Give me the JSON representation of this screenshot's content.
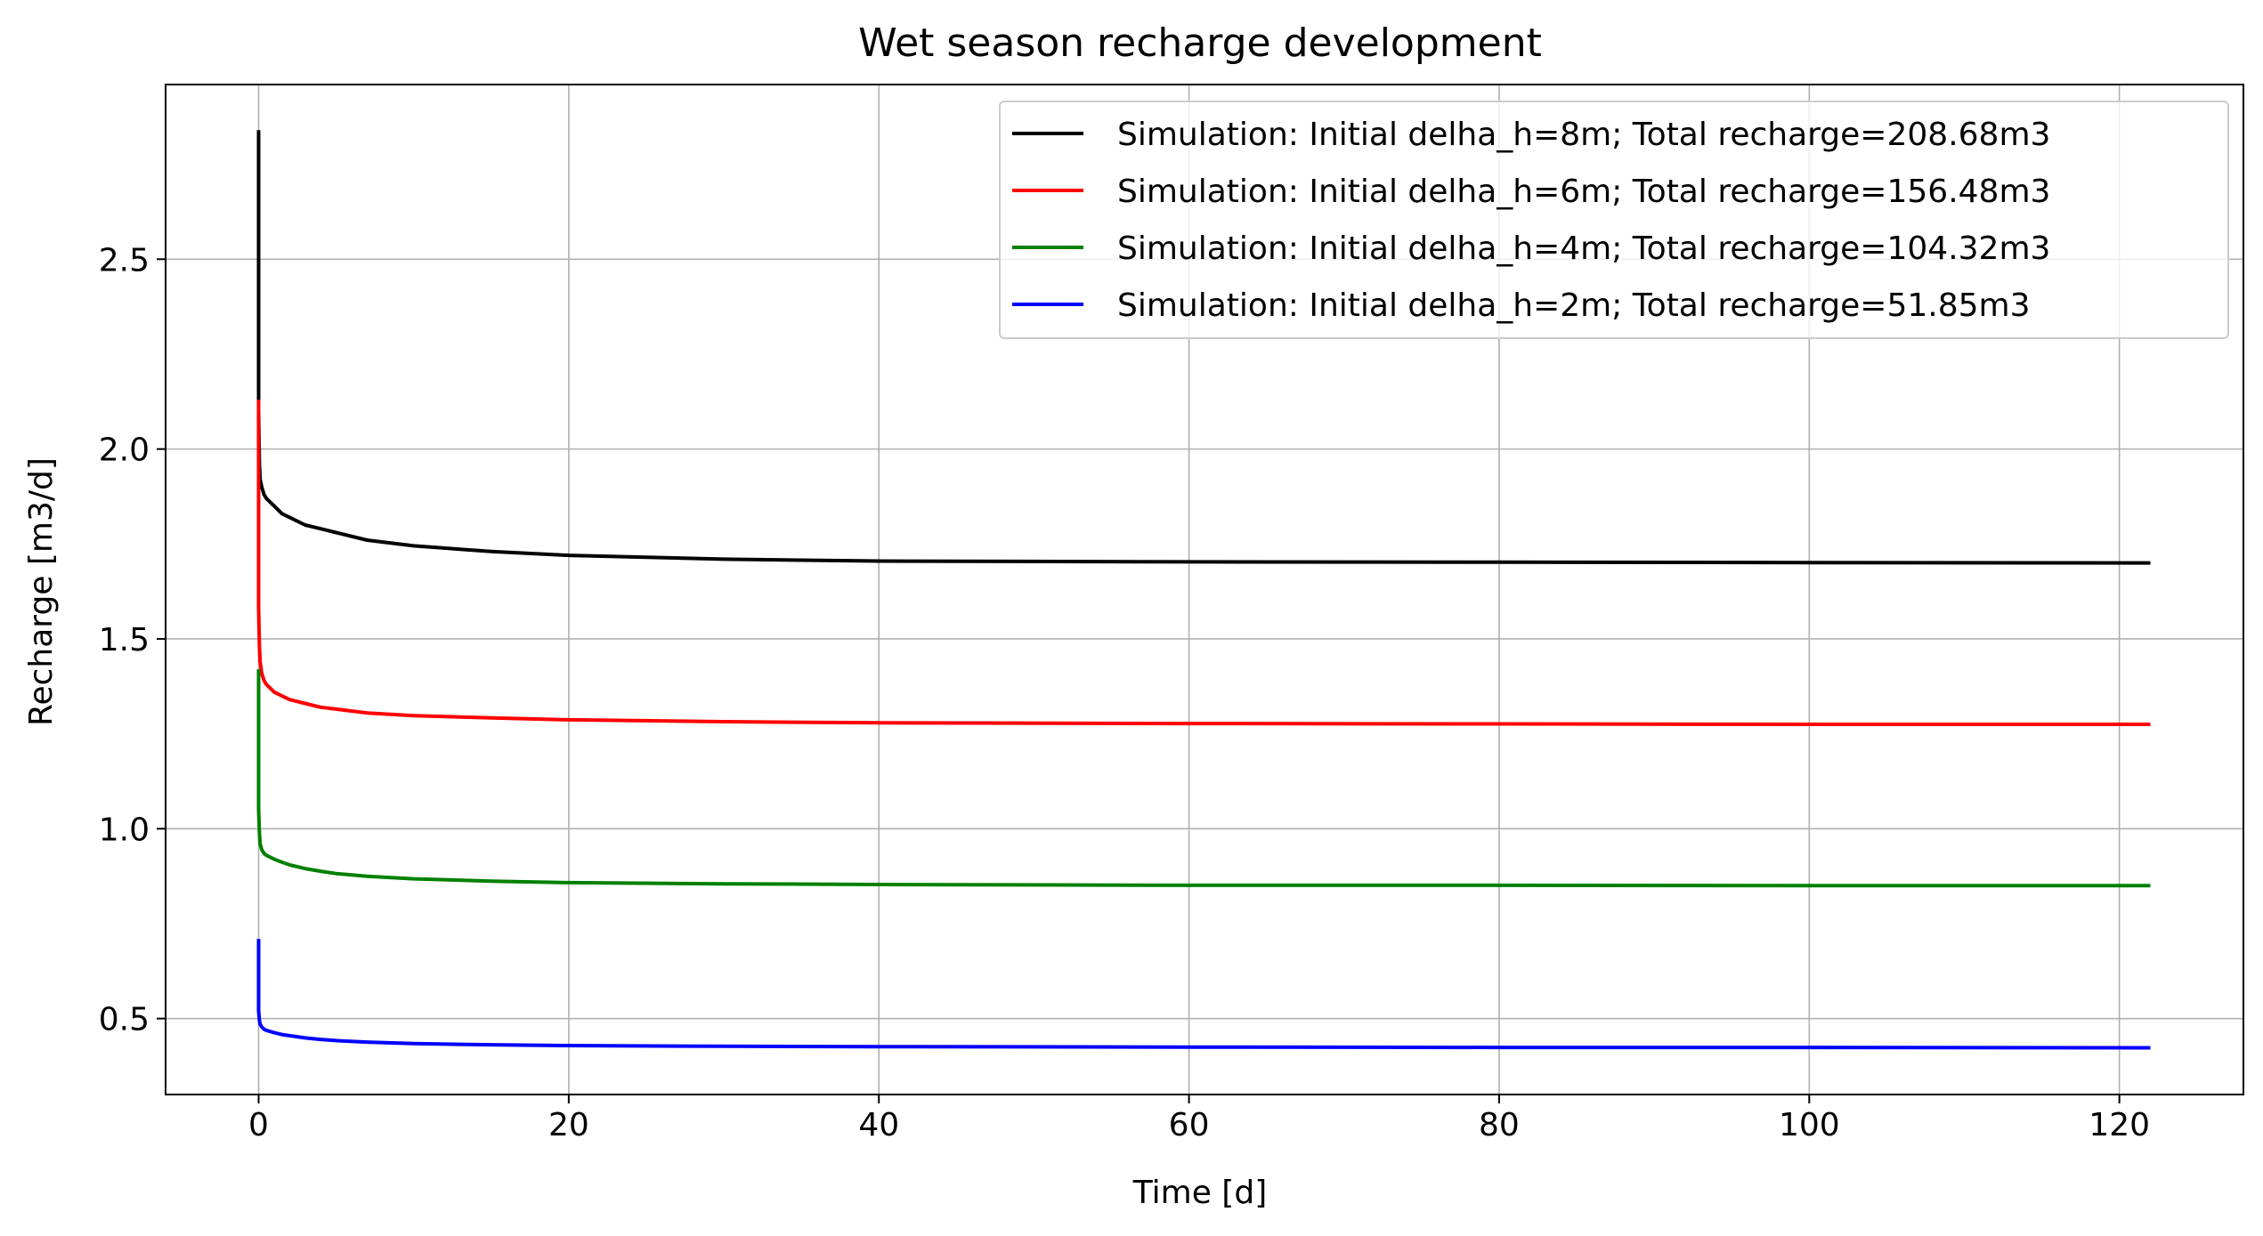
{
  "chart_data": {
    "type": "line",
    "title": "Wet season recharge development",
    "xlabel": "Time [d]",
    "ylabel": "Recharge [m3/d]",
    "xlim": [
      -6,
      128
    ],
    "ylim": [
      0.3,
      2.96
    ],
    "xticks": [
      0,
      20,
      40,
      60,
      80,
      100,
      120
    ],
    "xtick_labels": [
      "0",
      "20",
      "40",
      "60",
      "80",
      "100",
      "120"
    ],
    "yticks": [
      0.5,
      1.0,
      1.5,
      2.0,
      2.5
    ],
    "ytick_labels": [
      "0.5",
      "1.0",
      "1.5",
      "2.0",
      "2.5"
    ],
    "grid": true,
    "legend_position": "top-right",
    "series": [
      {
        "name": "Simulation: Initial delha_h=8m; Total recharge=208.68m3",
        "color": "#000000",
        "x": [
          0,
          0,
          0.05,
          0.1,
          0.2,
          0.35,
          0.5,
          0.75,
          1,
          1.5,
          2,
          3,
          4,
          5,
          7,
          10,
          15,
          20,
          30,
          40,
          60,
          80,
          100,
          122
        ],
        "y": [
          2.84,
          2.1,
          1.96,
          1.92,
          1.9,
          1.88,
          1.87,
          1.86,
          1.85,
          1.83,
          1.82,
          1.8,
          1.79,
          1.78,
          1.76,
          1.745,
          1.73,
          1.72,
          1.71,
          1.705,
          1.703,
          1.702,
          1.701,
          1.7
        ]
      },
      {
        "name": "Simulation: Initial delha_h=6m; Total recharge=156.48m3",
        "color": "#ff0000",
        "x": [
          0,
          0,
          0.05,
          0.1,
          0.2,
          0.35,
          0.5,
          0.75,
          1,
          1.5,
          2,
          3,
          4,
          5,
          7,
          10,
          15,
          20,
          30,
          40,
          60,
          80,
          100,
          122
        ],
        "y": [
          2.13,
          1.58,
          1.48,
          1.44,
          1.41,
          1.39,
          1.38,
          1.37,
          1.36,
          1.35,
          1.34,
          1.33,
          1.32,
          1.315,
          1.305,
          1.298,
          1.292,
          1.287,
          1.282,
          1.279,
          1.277,
          1.276,
          1.275,
          1.275
        ]
      },
      {
        "name": "Simulation: Initial delha_h=4m; Total recharge=104.32m3",
        "color": "#008000",
        "x": [
          0,
          0,
          0.05,
          0.1,
          0.2,
          0.35,
          0.5,
          0.75,
          1,
          1.5,
          2,
          3,
          4,
          5,
          7,
          10,
          15,
          20,
          30,
          40,
          60,
          80,
          100,
          122
        ],
        "y": [
          1.42,
          1.05,
          0.99,
          0.96,
          0.945,
          0.935,
          0.93,
          0.925,
          0.92,
          0.912,
          0.905,
          0.895,
          0.888,
          0.882,
          0.875,
          0.868,
          0.862,
          0.858,
          0.855,
          0.853,
          0.851,
          0.851,
          0.85,
          0.85
        ]
      },
      {
        "name": "Simulation: Initial delha_h=2m; Total recharge=51.85m3",
        "color": "#0000ff",
        "x": [
          0,
          0,
          0.05,
          0.1,
          0.2,
          0.35,
          0.5,
          0.75,
          1,
          1.5,
          2,
          3,
          4,
          5,
          7,
          10,
          15,
          20,
          30,
          40,
          60,
          80,
          100,
          122
        ],
        "y": [
          0.71,
          0.52,
          0.495,
          0.485,
          0.478,
          0.472,
          0.469,
          0.466,
          0.463,
          0.458,
          0.455,
          0.449,
          0.445,
          0.442,
          0.438,
          0.434,
          0.431,
          0.429,
          0.427,
          0.426,
          0.425,
          0.424,
          0.424,
          0.423
        ]
      }
    ]
  }
}
